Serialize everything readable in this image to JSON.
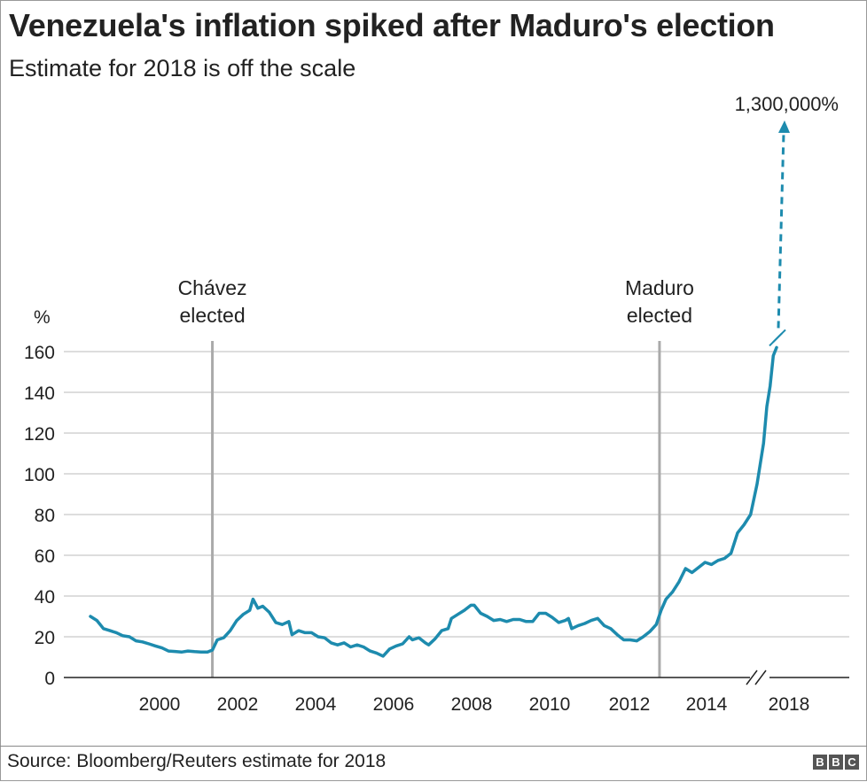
{
  "header": {
    "title": "Venezuela's inflation spiked after Maduro's election",
    "subtitle": "Estimate for 2018 is off the scale"
  },
  "footer": {
    "source": "Source: Bloomberg/Reuters estimate for 2018",
    "logo_letters": [
      "B",
      "B",
      "C"
    ]
  },
  "colors": {
    "line": "#1d8bae",
    "grid": "#bbbbbb",
    "event_line": "#aaaaaa",
    "text": "#222222"
  },
  "chart_data": {
    "type": "line",
    "title": "Venezuela's inflation spiked after Maduro's election",
    "subtitle": "Estimate for 2018 is off the scale",
    "xlabel": "",
    "ylabel": "%",
    "ylim": [
      0,
      160
    ],
    "xlim": [
      1998,
      2019
    ],
    "y_ticks": [
      "0",
      "20",
      "40",
      "60",
      "80",
      "100",
      "120",
      "140",
      "160"
    ],
    "x_ticks": [
      "2000",
      "2002",
      "2004",
      "2006",
      "2008",
      "2010",
      "2012",
      "2014",
      "2018"
    ],
    "axis_break": true,
    "grid": true,
    "series": [
      {
        "values": [
          [
            1998.6,
            30
          ],
          [
            1998.8,
            28
          ],
          [
            1999.0,
            24
          ],
          [
            1999.2,
            23
          ],
          [
            1999.4,
            22
          ],
          [
            1999.6,
            20.5
          ],
          [
            1999.8,
            20
          ],
          [
            2000.0,
            18
          ],
          [
            2000.2,
            17.5
          ],
          [
            2000.4,
            16.5
          ],
          [
            2000.6,
            15.5
          ],
          [
            2000.8,
            14.5
          ],
          [
            2001.0,
            13
          ],
          [
            2001.2,
            12.8
          ],
          [
            2001.4,
            12.5
          ],
          [
            2001.6,
            13
          ],
          [
            2001.8,
            12.7
          ],
          [
            2002.0,
            12.5
          ],
          [
            2002.2,
            12.5
          ],
          [
            2002.35,
            13.5
          ],
          [
            2002.5,
            18.5
          ],
          [
            2002.7,
            19.5
          ],
          [
            2002.9,
            23
          ],
          [
            2003.1,
            28
          ],
          [
            2003.3,
            31
          ],
          [
            2003.5,
            33
          ],
          [
            2003.6,
            38.5
          ],
          [
            2003.75,
            34
          ],
          [
            2003.9,
            35
          ],
          [
            2004.1,
            32
          ],
          [
            2004.3,
            27
          ],
          [
            2004.5,
            26
          ],
          [
            2004.7,
            27.5
          ],
          [
            2004.8,
            21
          ],
          [
            2005.0,
            23
          ],
          [
            2005.2,
            22
          ],
          [
            2005.4,
            22
          ],
          [
            2005.6,
            20
          ],
          [
            2005.8,
            19.5
          ],
          [
            2006.0,
            17
          ],
          [
            2006.2,
            16
          ],
          [
            2006.4,
            17
          ],
          [
            2006.6,
            15
          ],
          [
            2006.8,
            16
          ],
          [
            2007.0,
            15
          ],
          [
            2007.2,
            13
          ],
          [
            2007.4,
            12
          ],
          [
            2007.6,
            10.5
          ],
          [
            2007.8,
            14
          ],
          [
            2008.0,
            15.5
          ],
          [
            2008.2,
            16.5
          ],
          [
            2008.4,
            20
          ],
          [
            2008.5,
            18.5
          ],
          [
            2008.7,
            19.5
          ],
          [
            2008.9,
            17
          ],
          [
            2009.0,
            16
          ],
          [
            2009.2,
            19
          ],
          [
            2009.4,
            23
          ],
          [
            2009.6,
            24
          ],
          [
            2009.7,
            29
          ],
          [
            2009.9,
            31
          ],
          [
            2010.1,
            33
          ],
          [
            2010.3,
            35.5
          ],
          [
            2010.4,
            35.5
          ],
          [
            2010.6,
            31.5
          ],
          [
            2010.8,
            30
          ],
          [
            2011.0,
            28
          ],
          [
            2011.2,
            28.5
          ],
          [
            2011.4,
            27.5
          ],
          [
            2011.6,
            28.5
          ],
          [
            2011.8,
            28.5
          ],
          [
            2012.0,
            27.5
          ],
          [
            2012.2,
            27.5
          ],
          [
            2012.4,
            31.5
          ],
          [
            2012.6,
            31.5
          ],
          [
            2012.8,
            29.5
          ],
          [
            2013.0,
            27
          ],
          [
            2013.2,
            28
          ],
          [
            2013.3,
            29
          ],
          [
            2013.4,
            24
          ],
          [
            2013.6,
            25.5
          ],
          [
            2013.8,
            26.5
          ],
          [
            2014.0,
            28
          ],
          [
            2014.2,
            29
          ],
          [
            2014.4,
            25.5
          ],
          [
            2014.6,
            24
          ],
          [
            2014.8,
            21
          ],
          [
            2015.0,
            18.5
          ],
          [
            2015.2,
            18.5
          ],
          [
            2015.4,
            18
          ],
          [
            2015.6,
            20
          ],
          [
            2015.8,
            22.5
          ],
          [
            2016.0,
            26
          ],
          [
            2016.15,
            33
          ],
          [
            2016.3,
            38.5
          ],
          [
            2016.5,
            42
          ],
          [
            2016.7,
            47
          ],
          [
            2016.9,
            53.5
          ],
          [
            2017.1,
            51.5
          ],
          [
            2017.3,
            54
          ],
          [
            2017.5,
            56.5
          ],
          [
            2017.7,
            55.5
          ],
          [
            2017.9,
            57.5
          ],
          [
            2018.1,
            58.5
          ],
          [
            2018.3,
            61
          ],
          [
            2018.5,
            71
          ],
          [
            2018.7,
            75
          ],
          [
            2018.9,
            80
          ],
          [
            2019.1,
            95
          ],
          [
            2019.3,
            115
          ],
          [
            2019.4,
            133
          ],
          [
            2019.5,
            143
          ],
          [
            2019.6,
            158
          ],
          [
            2019.7,
            162
          ]
        ]
      }
    ],
    "events": [
      {
        "label_line1": "Chávez",
        "label_line2": "elected",
        "x": 2002.35
      },
      {
        "label_line1": "Maduro",
        "label_line2": "elected",
        "x": 2016.1
      }
    ],
    "annotations": [
      {
        "text": "1,300,000%",
        "value": 1300000
      }
    ]
  }
}
